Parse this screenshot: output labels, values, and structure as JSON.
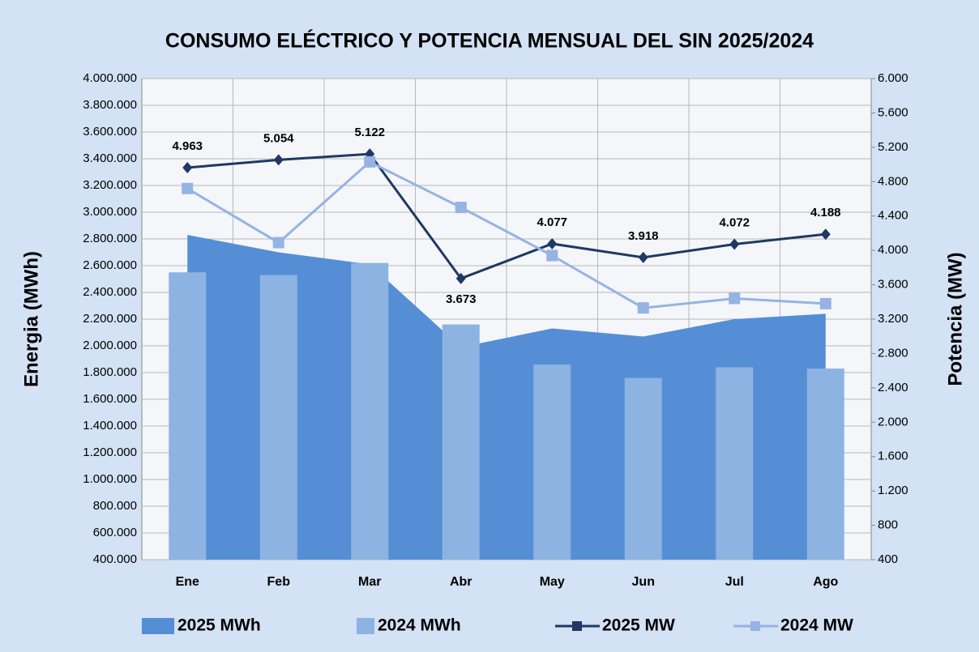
{
  "chart_data": {
    "type": "combo",
    "title": "CONSUMO ELÉCTRICO Y POTENCIA MENSUAL DEL SIN 2025/2024",
    "y_label": "Energia (MWh)",
    "y2_label": "Potencia (MW)",
    "categories": [
      "Ene",
      "Feb",
      "Mar",
      "Abr",
      "May",
      "Jun",
      "Jul",
      "Ago"
    ],
    "series": [
      {
        "name": "2025 MWh",
        "kind": "area",
        "color": "#558ed5",
        "values": [
          2830000,
          2700000,
          2610000,
          1990000,
          2130000,
          2070000,
          2200000,
          2240000
        ]
      },
      {
        "name": "2024 MWh",
        "kind": "bar",
        "color": "#8db3e2",
        "values": [
          2550000,
          2530000,
          2620000,
          2160000,
          1860000,
          1760000,
          1840000,
          1830000
        ]
      },
      {
        "name": "2025 MW",
        "kind": "line",
        "axis": "y2",
        "color": "#1f3864",
        "values": [
          4963,
          5054,
          5122,
          3673,
          4077,
          3918,
          4072,
          4188
        ],
        "value_labels": [
          "4.963",
          "5.054",
          "5.122",
          "3.673",
          "4.077",
          "3.918",
          "4.072",
          "4.188"
        ]
      },
      {
        "name": "2024 MW",
        "kind": "line",
        "axis": "y2",
        "color": "#95b3e3",
        "values": [
          4720,
          4090,
          5030,
          4500,
          3940,
          3330,
          3440,
          3380
        ]
      }
    ],
    "ylim": [
      400000,
      4000000
    ],
    "yticks": [
      {
        "value": 400000,
        "label": "400.000"
      },
      {
        "value": 600000,
        "label": "600.000"
      },
      {
        "value": 800000,
        "label": "800.000"
      },
      {
        "value": 1000000,
        "label": "1.000.000"
      },
      {
        "value": 1200000,
        "label": "1.200.000"
      },
      {
        "value": 1400000,
        "label": "1.400.000"
      },
      {
        "value": 1600000,
        "label": "1.600.000"
      },
      {
        "value": 1800000,
        "label": "1.800.000"
      },
      {
        "value": 2000000,
        "label": "2.000.000"
      },
      {
        "value": 2200000,
        "label": "2.200.000"
      },
      {
        "value": 2400000,
        "label": "2.400.000"
      },
      {
        "value": 2600000,
        "label": "2.600.000"
      },
      {
        "value": 2800000,
        "label": "2.800.000"
      },
      {
        "value": 3000000,
        "label": "3.000.000"
      },
      {
        "value": 3200000,
        "label": "3.200.000"
      },
      {
        "value": 3400000,
        "label": "3.400.000"
      },
      {
        "value": 3600000,
        "label": "3.600.000"
      },
      {
        "value": 3800000,
        "label": "3.800.000"
      },
      {
        "value": 4000000,
        "label": "4.000.000"
      }
    ],
    "y2lim": [
      400,
      6000
    ],
    "y2ticks": [
      400,
      800,
      {
        "value": 1200,
        "label": "1.200"
      },
      {
        "value": 1600,
        "label": "1.600"
      },
      {
        "value": 2000,
        "label": "2.000"
      },
      {
        "value": 2400,
        "label": "2.400"
      },
      {
        "value": 2800,
        "label": "2.800"
      },
      {
        "value": 3200,
        "label": "3.200"
      },
      {
        "value": 3600,
        "label": "3.600"
      },
      {
        "value": 4000,
        "label": "4.000"
      },
      {
        "value": 4400,
        "label": "4.400"
      },
      {
        "value": 4800,
        "label": "4.800"
      },
      {
        "value": 5200,
        "label": "5.200"
      },
      {
        "value": 5600,
        "label": "5.600"
      },
      {
        "value": 6000,
        "label": "6.000"
      }
    ],
    "grid": true,
    "legend": "bottom"
  }
}
